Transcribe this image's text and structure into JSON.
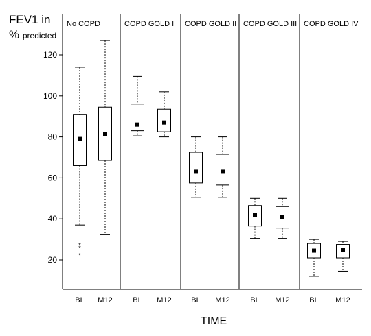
{
  "chart_data": {
    "type": "box",
    "ylabel_line1": "FEV1 in",
    "ylabel_line2_main": "%",
    "ylabel_line2_sub": "predicted",
    "xlabel": "TIME",
    "ylim": [
      10,
      130
    ],
    "yticks": [
      20,
      40,
      60,
      80,
      100,
      120
    ],
    "panels": [
      {
        "name": "No COPD",
        "boxes": [
          {
            "label": "BL",
            "min": 37,
            "q1": 66,
            "median": 79,
            "q3": 91,
            "max": 114,
            "outliers": [
              27.5,
              26,
              22.5
            ]
          },
          {
            "label": "M12",
            "min": 32.5,
            "q1": 68.5,
            "median": 81.5,
            "q3": 94.5,
            "max": 127,
            "outliers": []
          }
        ]
      },
      {
        "name": "COPD GOLD I",
        "boxes": [
          {
            "label": "BL",
            "min": 80.5,
            "q1": 83,
            "median": 86,
            "q3": 96,
            "max": 109.5,
            "outliers": []
          },
          {
            "label": "M12",
            "min": 80,
            "q1": 82.5,
            "median": 87,
            "q3": 93.5,
            "max": 102,
            "outliers": []
          }
        ]
      },
      {
        "name": "COPD GOLD II",
        "boxes": [
          {
            "label": "BL",
            "min": 50.5,
            "q1": 57.5,
            "median": 63,
            "q3": 72.5,
            "max": 80,
            "outliers": []
          },
          {
            "label": "M12",
            "min": 50.5,
            "q1": 56.5,
            "median": 63,
            "q3": 71.5,
            "max": 80,
            "outliers": []
          }
        ]
      },
      {
        "name": "COPD GOLD III",
        "boxes": [
          {
            "label": "BL",
            "min": 30.5,
            "q1": 36.5,
            "median": 42,
            "q3": 46.5,
            "max": 50,
            "outliers": []
          },
          {
            "label": "M12",
            "min": 30.5,
            "q1": 35.5,
            "median": 41,
            "q3": 46,
            "max": 50,
            "outliers": []
          }
        ]
      },
      {
        "name": "COPD GOLD IV",
        "boxes": [
          {
            "label": "BL",
            "min": 12,
            "q1": 21,
            "median": 24.5,
            "q3": 28,
            "max": 30,
            "outliers": []
          },
          {
            "label": "M12",
            "min": 14.5,
            "q1": 21,
            "median": 25,
            "q3": 27.5,
            "max": 29,
            "outliers": []
          }
        ]
      }
    ]
  }
}
